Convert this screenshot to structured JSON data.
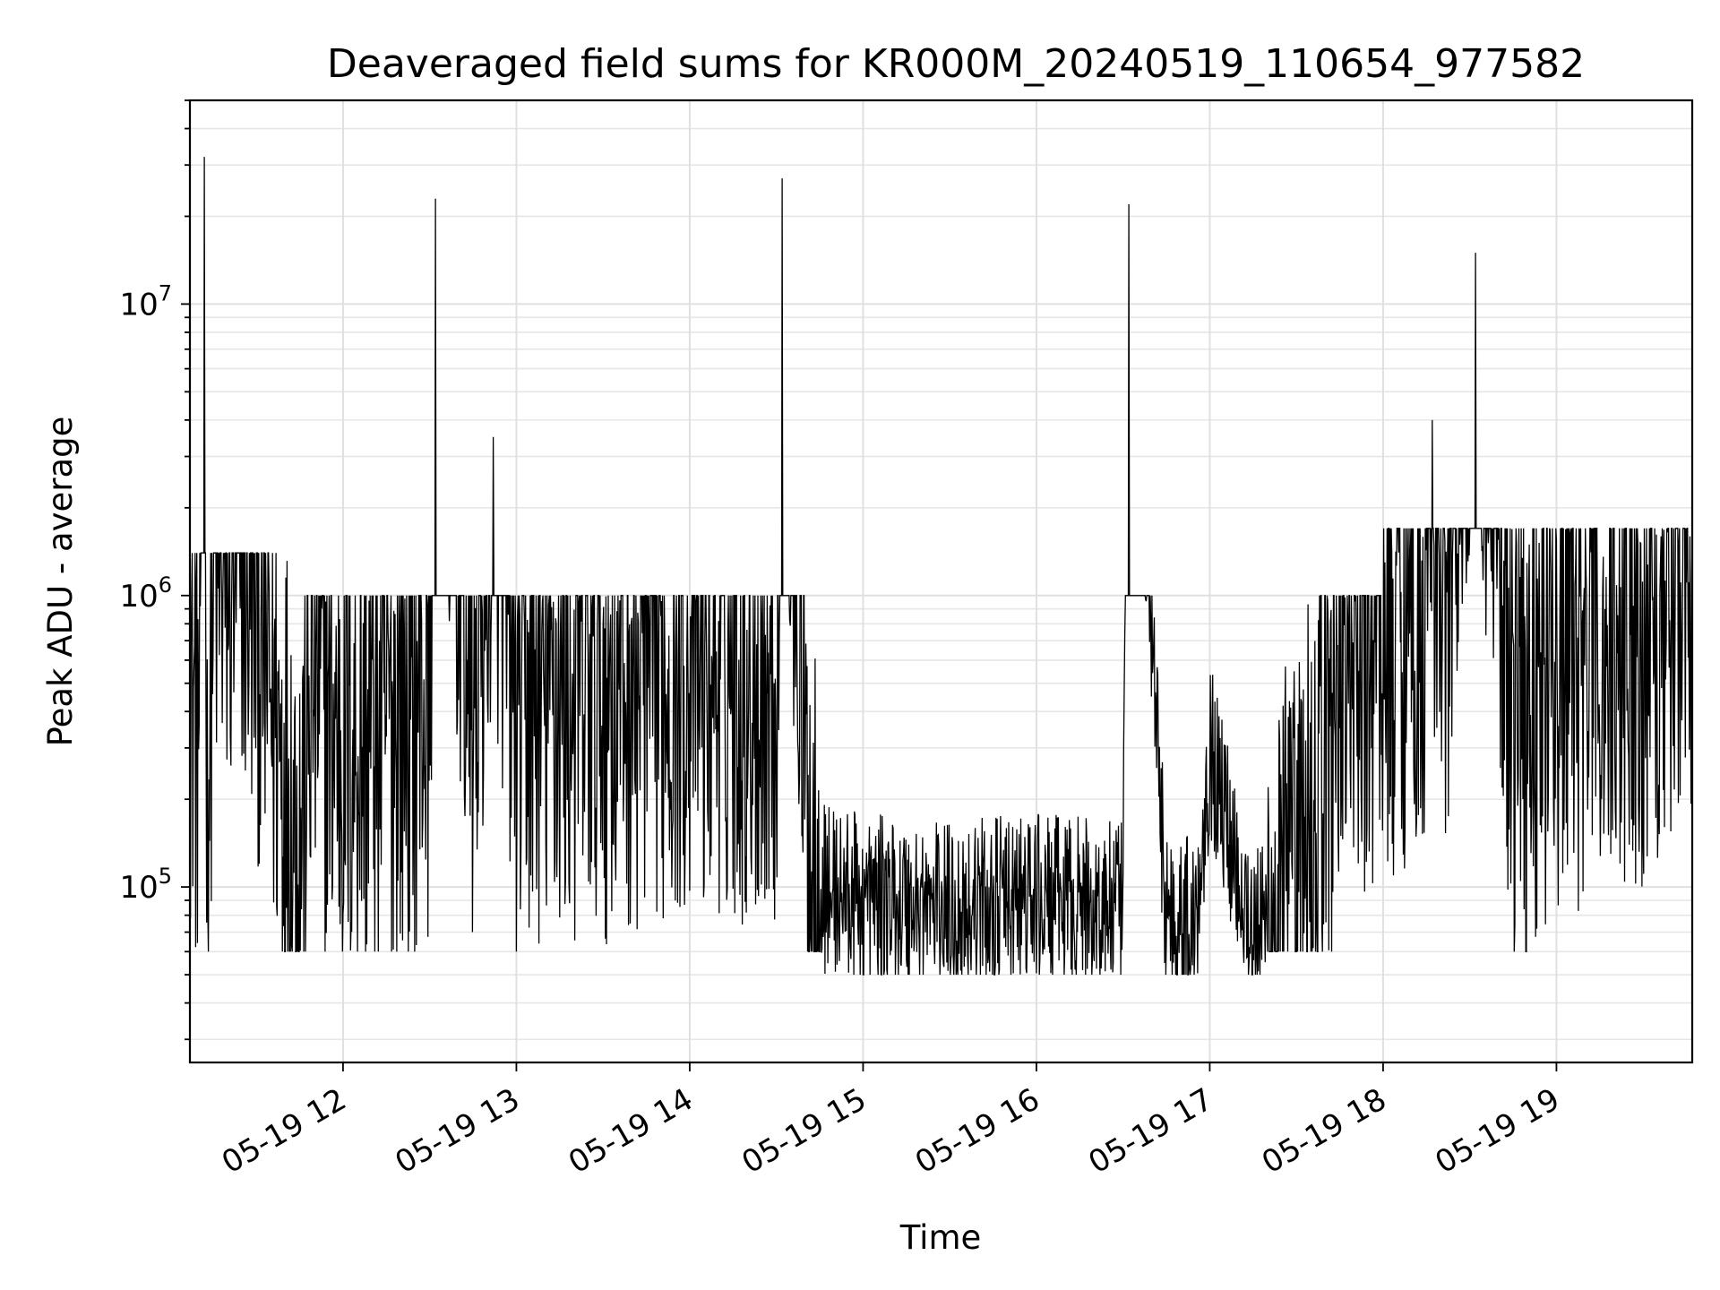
{
  "chart_data": {
    "type": "line",
    "title": "Deaveraged field sums for KR000M_20240519_110654_977582",
    "xlabel": "Time",
    "ylabel": "Peak ADU - average",
    "yscale": "log",
    "xlim": [
      "2024-05-19 11:07",
      "2024-05-19 19:47"
    ],
    "ylim": [
      25000,
      50000000
    ],
    "grid": true,
    "line_color": "#000000",
    "x_ticks": [
      "05-19 12",
      "05-19 13",
      "05-19 14",
      "05-19 15",
      "05-19 16",
      "05-19 17",
      "05-19 18",
      "05-19 19"
    ],
    "y_ticks": [
      {
        "base": "10",
        "exp": "5",
        "value": 100000
      },
      {
        "base": "10",
        "exp": "6",
        "value": 1000000
      },
      {
        "base": "10",
        "exp": "7",
        "value": 10000000
      }
    ],
    "series": [
      {
        "x_start": "2024-05-19 11:07",
        "x_end": "2024-05-19 19:47",
        "approx_points": [
          [
            "11:07",
            600000
          ],
          [
            "11:10",
            350000
          ],
          [
            "11:12",
            32000000
          ],
          [
            "11:13",
            140000
          ],
          [
            "11:15",
            1300000
          ],
          [
            "11:20",
            1200000
          ],
          [
            "11:25",
            1500000
          ],
          [
            "11:30",
            1000000
          ],
          [
            "11:35",
            500000
          ],
          [
            "11:40",
            250000
          ],
          [
            "11:45",
            150000
          ],
          [
            "11:50",
            600000
          ],
          [
            "12:00",
            300000
          ],
          [
            "12:15",
            400000
          ],
          [
            "12:30",
            500000
          ],
          [
            "12:32",
            23000000
          ],
          [
            "12:45",
            400000
          ],
          [
            "12:52",
            3500000
          ],
          [
            "13:00",
            450000
          ],
          [
            "13:30",
            500000
          ],
          [
            "14:00",
            650000
          ],
          [
            "14:30",
            550000
          ],
          [
            "14:32",
            27000000
          ],
          [
            "14:40",
            200000
          ],
          [
            "14:45",
            100000
          ],
          [
            "15:00",
            90000
          ],
          [
            "15:30",
            85000
          ],
          [
            "16:00",
            90000
          ],
          [
            "16:30",
            85000
          ],
          [
            "16:32",
            22000000
          ],
          [
            "16:45",
            80000
          ],
          [
            "16:55",
            75000
          ],
          [
            "17:00",
            300000
          ],
          [
            "17:15",
            70000
          ],
          [
            "17:30",
            80000
          ],
          [
            "17:45",
            600000
          ],
          [
            "18:00",
            800000
          ],
          [
            "18:15",
            1000000
          ],
          [
            "18:17",
            4000000
          ],
          [
            "18:20",
            700000
          ],
          [
            "18:32",
            15000000
          ],
          [
            "18:45",
            400000
          ],
          [
            "19:00",
            600000
          ],
          [
            "19:15",
            700000
          ],
          [
            "19:30",
            800000
          ],
          [
            "19:45",
            1500000
          ]
        ]
      }
    ]
  }
}
